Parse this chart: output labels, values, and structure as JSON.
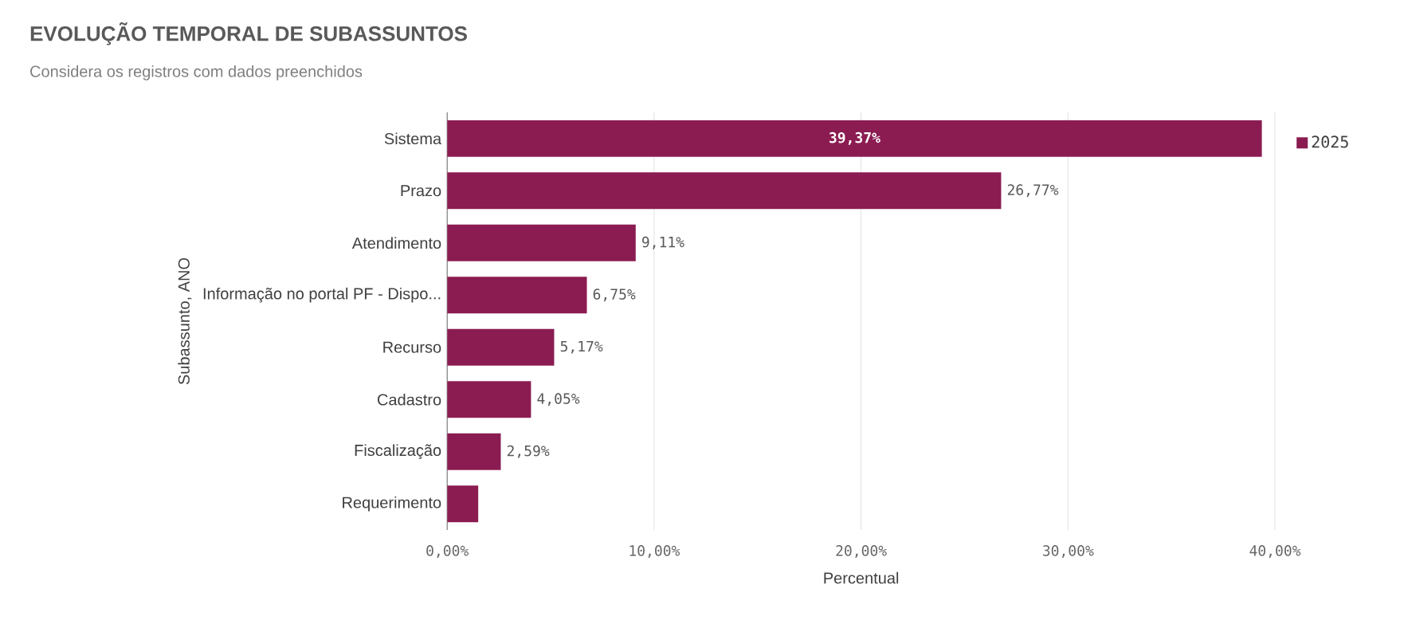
{
  "chart_data": {
    "type": "bar",
    "orientation": "horizontal",
    "title": "EVOLUÇÃO TEMPORAL DE SUBASSUNTOS",
    "subtitle": "Considera os registros com dados preenchidos",
    "xlabel": "Percentual",
    "ylabel": "Subassunto, ANO",
    "categories": [
      "Sistema",
      "Prazo",
      "Atendimento",
      "Informação no portal PF - Dispo...",
      "Recurso",
      "Cadastro",
      "Fiscalização",
      "Requerimento"
    ],
    "series": [
      {
        "name": "2025",
        "color": "#8b1c52",
        "values": [
          39.37,
          26.77,
          9.11,
          6.75,
          5.17,
          4.05,
          2.59,
          1.5
        ],
        "value_labels": [
          "39,37%",
          "26,77%",
          "9,11%",
          "6,75%",
          "5,17%",
          "4,05%",
          "2,59%",
          null
        ]
      }
    ],
    "xlim": [
      0,
      40
    ],
    "xticks": [
      {
        "value": 0,
        "label": "0,00%"
      },
      {
        "value": 10,
        "label": "10,00%"
      },
      {
        "value": 20,
        "label": "20,00%"
      },
      {
        "value": 30,
        "label": "30,00%"
      },
      {
        "value": 40,
        "label": "40,00%"
      }
    ],
    "grid": "x",
    "legend": "top right"
  }
}
